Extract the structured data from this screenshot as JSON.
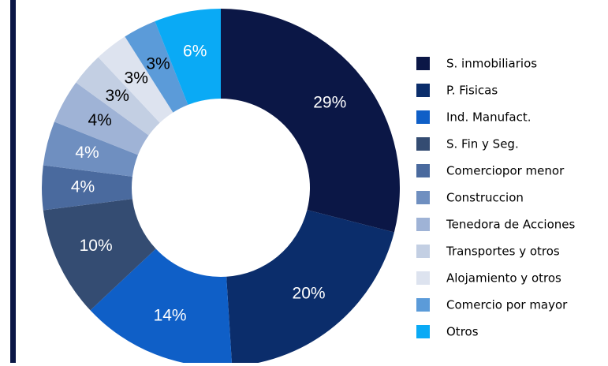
{
  "chart_data": {
    "type": "donut",
    "categories": [
      "S. inmobiliarios",
      "P. Fisicas",
      "Ind. Manufact.",
      "S. Fin y Seg.",
      "Comerciopor menor",
      "Construccion",
      "Tenedora de Acciones",
      "Transportes y otros",
      "Alojamiento y otros",
      "Comercio por mayor",
      "Otros"
    ],
    "values": [
      29,
      20,
      14,
      10,
      4,
      4,
      4,
      3,
      3,
      3,
      6
    ],
    "value_labels": [
      "29%",
      "20%",
      "14%",
      "10%",
      "4%",
      "4%",
      "4%",
      "3%",
      "3%",
      "3%",
      "6%"
    ],
    "colors": [
      "#0b1746",
      "#0b2d6b",
      "#0f5fc7",
      "#344c72",
      "#4a6a9e",
      "#6f8fc0",
      "#9fb3d6",
      "#c3cfe3",
      "#dde3ef",
      "#5b9bd9",
      "#0aaaf5"
    ],
    "legend": "right"
  }
}
